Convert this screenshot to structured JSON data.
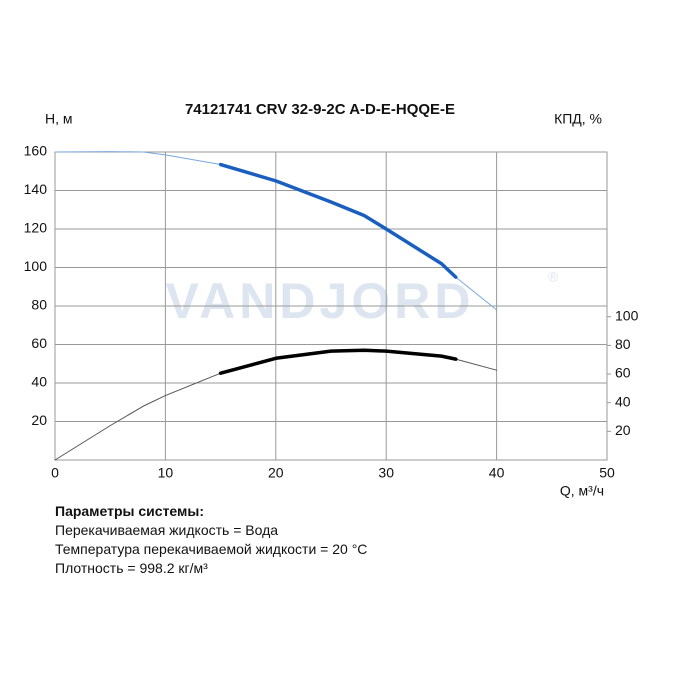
{
  "chart_data": {
    "type": "line",
    "title": "74121741 CRV 32-9-2C A-D-E-HQQE-E",
    "ylabel": "H, м",
    "y2label": "КПД, %",
    "xlabel": "Q, м³/ч",
    "watermark": "VANDJORD",
    "watermark_mark": "®",
    "x": [
      0,
      5,
      8,
      10,
      15,
      20,
      25,
      28,
      30,
      35,
      36.3,
      40
    ],
    "xlim": [
      0,
      50
    ],
    "xticks": [
      0,
      10,
      20,
      30,
      40,
      50
    ],
    "ylim": [
      0,
      160
    ],
    "yticks": [
      20,
      40,
      60,
      80,
      100,
      120,
      140,
      160
    ],
    "y2lim": [
      0,
      215
    ],
    "y2ticks": [
      20,
      40,
      60,
      80,
      100
    ],
    "grid": true,
    "operating_range": [
      15,
      36.3
    ],
    "series": [
      {
        "name": "H",
        "color": "#1a5fc0",
        "thin_color": "#7aa8dc",
        "values": [
          160,
          160.2,
          160,
          158.5,
          153.5,
          145,
          134,
          127,
          120,
          102,
          95,
          78
        ]
      },
      {
        "name": "КПД",
        "axis": "y2",
        "color": "#000000",
        "thin_color": "#555555",
        "values": [
          0,
          24,
          37.6,
          45,
          60.6,
          71,
          76,
          76.6,
          76,
          72.5,
          70.4,
          62.7
        ]
      }
    ]
  },
  "system_params": {
    "title": "Параметры системы:",
    "lines": [
      "Перекачиваемая жидкость = Вода",
      "Температура перекачиваемой жидкости = 20 °C",
      "Плотность = 998.2 кг/м³"
    ]
  }
}
